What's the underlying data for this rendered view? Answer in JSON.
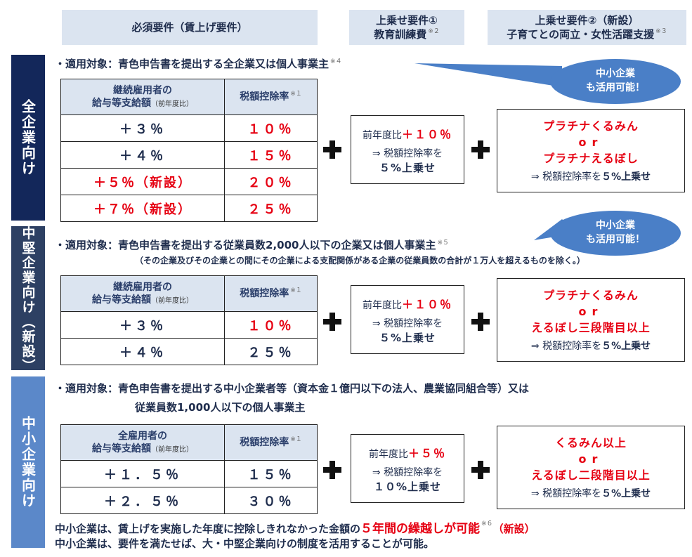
{
  "headers": {
    "required": "必須要件（賃上げ要件）",
    "extra1_line1": "上乗せ要件①",
    "extra1_line2": "教育訓練費",
    "extra1_sup": "※２",
    "extra2_line1": "上乗せ要件②（新設）",
    "extra2_line2": "子育てとの両立・女性活躍支援",
    "extra2_sup": "※３"
  },
  "bubble": {
    "line1": "中小企業",
    "line2": "も活用可能！"
  },
  "sections": [
    {
      "label": "全企業向け",
      "target": "・適用対象：青色申告書を提出する全企業又は個人事業主",
      "target_sup": "※４",
      "table": {
        "h1_line1": "継続雇用者の",
        "h1_line2": "給与等支給額",
        "h1_small": "（前年度比）",
        "h2": "税額控除率",
        "h2_sup": "※１",
        "rows": [
          {
            "a": "＋３％",
            "b": "１０％"
          },
          {
            "a": "＋４％",
            "b": "１５％"
          },
          {
            "a": "＋５％（新設）",
            "b": "２０％"
          },
          {
            "a": "＋７％（新設）",
            "b": "２５％"
          }
        ]
      },
      "box1": {
        "pre": "前年度比",
        "val": "＋１０％",
        "l2": "⇒ 税額控除率を",
        "l3": "５%上乗せ"
      },
      "box2": {
        "r1": "プラチナくるみん",
        "or": "or",
        "r2": "プラチナえるぼし",
        "s_pre": "⇒ 税額控除率を",
        "s_val": "５%上乗せ"
      }
    },
    {
      "label": "中堅企業向け（新設）",
      "target": "・適用対象：青色申告書を提出する従業員数2,000人以下の企業又は個人事業主",
      "target_sup": "※５",
      "note": "（その企業及びその企業との間にその企業による支配関係がある企業の従業員数の合計が１万人を超えるものを除く。）",
      "table": {
        "h1_line1": "継続雇用者の",
        "h1_line2": "給与等支給額",
        "h1_small": "（前年度比）",
        "h2": "税額控除率",
        "h2_sup": "※１",
        "rows": [
          {
            "a": "＋３％",
            "b": "１０％"
          },
          {
            "a": "＋４％",
            "b": "２５％"
          }
        ]
      },
      "box1": {
        "pre": "前年度比",
        "val": "＋１０％",
        "l2": "⇒ 税額控除率を",
        "l3": "５%上乗せ"
      },
      "box2": {
        "r1": "プラチナくるみん",
        "or": "or",
        "r2": "えるぼし三段階目以上",
        "s_pre": "⇒ 税額控除率を",
        "s_val": "５%上乗せ"
      }
    },
    {
      "label": "中小企業向け",
      "target": "・適用対象：青色申告書を提出する中小企業者等（資本金１億円以下の法人、農業協同組合等）又は",
      "target_line2": "従業員数1,000人以下の個人事業主",
      "table": {
        "h1_line1": "全雇用者の",
        "h1_line2": "給与等支給額",
        "h1_small": "（前年度比）",
        "h2": "税額控除率",
        "h2_sup": "※１",
        "rows": [
          {
            "a": "＋１．５％",
            "b": "１５％"
          },
          {
            "a": "＋２．５％",
            "b": "３０％"
          }
        ]
      },
      "box1": {
        "pre": "前年度比",
        "val": "＋５％",
        "l2": "⇒ 税額控除率を",
        "l3": "１０%上乗せ"
      },
      "box2": {
        "r1": "くるみん以上",
        "or": "or",
        "r2": "えるぼし二段階目以上",
        "s_pre": "⇒ 税額控除率を",
        "s_val": "５%上乗せ"
      }
    }
  ],
  "footer": {
    "line1_a": "中小企業は、賃上げを実施した年度に控除しきれなかった金額の",
    "line1_em": "５年間の繰越しが可能",
    "line1_sup": "※６",
    "line1_b": "（新設）",
    "line2": "中小企業は、要件を満たせば、大・中堅企業向けの制度を活用することが可能。"
  },
  "colors": {
    "side1": "#13275a",
    "side2": "#2d4063",
    "side3": "#5b88c9",
    "accent_red": "#e60012",
    "header_bg": "#dbe4f0",
    "bubble": "#4a7fc7"
  }
}
